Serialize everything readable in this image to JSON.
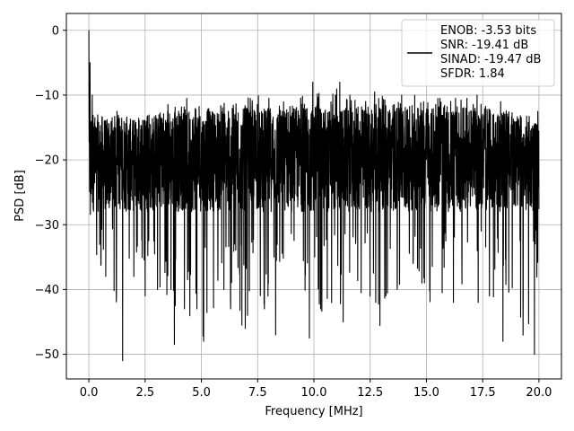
{
  "chart_data": {
    "type": "line",
    "title": "",
    "xlabel": "Frequency [MHz]",
    "ylabel": "PSD [dB]",
    "xlim": [
      -1.0,
      21.0
    ],
    "ylim": [
      -53.8,
      2.6
    ],
    "x_ticks": [
      "0.0",
      "2.5",
      "5.0",
      "7.5",
      "10.0",
      "12.5",
      "15.0",
      "17.5",
      "20.0"
    ],
    "y_ticks": [
      "0",
      "−10",
      "−20",
      "−30",
      "−40",
      "−50"
    ],
    "x_tick_values": [
      0,
      2.5,
      5,
      7.5,
      10,
      12.5,
      15,
      17.5,
      20
    ],
    "y_tick_values": [
      0,
      -10,
      -20,
      -30,
      -40,
      -50
    ],
    "grid": true,
    "legend_position": "top-right",
    "legend_lines": [
      "ENOB: -3.53 bits",
      "SNR: -19.41 dB",
      "SINAD: -19.47 dB",
      "SFDR: 1.84"
    ],
    "series": [
      {
        "color": "#000000",
        "x_range": [
          0.0,
          20.0
        ],
        "x": [
          0.0,
          0.05,
          0.1,
          0.15,
          0.3,
          0.5,
          0.75,
          1.0,
          1.5,
          2.0,
          2.5,
          3.0,
          3.5,
          4.0,
          4.5,
          5.0,
          5.5,
          6.0,
          6.5,
          7.0,
          7.5,
          8.0,
          8.5,
          9.0,
          9.5,
          10.0,
          10.5,
          11.0,
          11.5,
          12.0,
          12.5,
          13.0,
          13.5,
          14.0,
          14.5,
          15.0,
          15.5,
          16.0,
          16.5,
          17.0,
          17.5,
          18.0,
          18.5,
          19.0,
          19.5,
          20.0
        ],
        "upper_envelope": [
          0.0,
          -6.0,
          -10.0,
          -12.0,
          -13.0,
          -13.0,
          -14.0,
          -13.0,
          -13.0,
          -14.0,
          -13.0,
          -13.0,
          -11.0,
          -12.0,
          -10.5,
          -12.0,
          -11.5,
          -11.0,
          -11.0,
          -10.5,
          -10.0,
          -11.0,
          -10.5,
          -11.0,
          -10.0,
          -9.0,
          -10.5,
          -8.0,
          -10.0,
          -11.0,
          -10.5,
          -10.0,
          -11.0,
          -10.5,
          -10.0,
          -11.0,
          -10.5,
          -11.0,
          -10.0,
          -11.0,
          -11.0,
          -13.0,
          -12.0,
          -13.0,
          -13.0,
          -15.0
        ],
        "lower_envelope": [
          -25.0,
          -28.0,
          -30.0,
          -34.0,
          -36.0,
          -37.0,
          -38.0,
          -39.0,
          -51.0,
          -38.0,
          -41.0,
          -39.0,
          -42.0,
          -45.0,
          -47.0,
          -48.0,
          -43.0,
          -41.0,
          -44.0,
          -46.0,
          -40.0,
          -47.0,
          -43.0,
          -41.0,
          -47.0,
          -43.0,
          -46.0,
          -42.0,
          -44.0,
          -42.0,
          -43.0,
          -46.0,
          -41.0,
          -40.0,
          -42.0,
          -43.0,
          -42.0,
          -41.0,
          -43.0,
          -42.0,
          -39.0,
          -46.0,
          -41.0,
          -43.0,
          -50.0,
          -36.0
        ],
        "typical_band": [
          -28.0,
          -13.0
        ],
        "notable_dips": [
          {
            "x": 0.75,
            "y": -38.0
          },
          {
            "x": 1.5,
            "y": -51.0
          },
          {
            "x": 2.0,
            "y": -38.0
          },
          {
            "x": 2.5,
            "y": -41.0
          },
          {
            "x": 3.05,
            "y": -40.0
          },
          {
            "x": 3.65,
            "y": -40.0
          },
          {
            "x": 3.8,
            "y": -48.5
          },
          {
            "x": 4.8,
            "y": -43.0
          },
          {
            "x": 5.1,
            "y": -48.0
          },
          {
            "x": 6.0,
            "y": -40.0
          },
          {
            "x": 6.3,
            "y": -43.0
          },
          {
            "x": 6.8,
            "y": -45.5
          },
          {
            "x": 6.95,
            "y": -46.0
          },
          {
            "x": 7.05,
            "y": -44.0
          },
          {
            "x": 7.8,
            "y": -43.0
          },
          {
            "x": 8.3,
            "y": -47.0
          },
          {
            "x": 9.8,
            "y": -47.5
          },
          {
            "x": 10.3,
            "y": -43.0
          },
          {
            "x": 11.3,
            "y": -45.0
          },
          {
            "x": 12.1,
            "y": -40.5
          },
          {
            "x": 13.2,
            "y": -41.0
          },
          {
            "x": 13.7,
            "y": -40.0
          },
          {
            "x": 14.8,
            "y": -39.0
          },
          {
            "x": 15.7,
            "y": -40.5
          },
          {
            "x": 16.2,
            "y": -42.0
          },
          {
            "x": 17.3,
            "y": -42.0
          },
          {
            "x": 17.8,
            "y": -41.0
          },
          {
            "x": 18.4,
            "y": -48.0
          },
          {
            "x": 19.3,
            "y": -41.0
          },
          {
            "x": 19.8,
            "y": -50.0
          },
          {
            "x": 19.95,
            "y": -35.5
          }
        ],
        "notable_peaks": [
          {
            "x": 0.0,
            "y": 0.0
          },
          {
            "x": 0.05,
            "y": -5.0
          },
          {
            "x": 0.15,
            "y": -10.0
          },
          {
            "x": 1.25,
            "y": -12.5
          },
          {
            "x": 4.35,
            "y": -10.5
          },
          {
            "x": 8.0,
            "y": -10.5
          },
          {
            "x": 9.95,
            "y": -8.0
          },
          {
            "x": 11.15,
            "y": -8.0
          },
          {
            "x": 11.6,
            "y": -10.0
          },
          {
            "x": 12.7,
            "y": -9.5
          },
          {
            "x": 13.9,
            "y": -10.0
          },
          {
            "x": 15.6,
            "y": -10.5
          },
          {
            "x": 16.8,
            "y": -10.5
          },
          {
            "x": 17.25,
            "y": -10.0
          },
          {
            "x": 18.3,
            "y": -11.0
          },
          {
            "x": 19.95,
            "y": -12.5
          }
        ]
      }
    ]
  }
}
